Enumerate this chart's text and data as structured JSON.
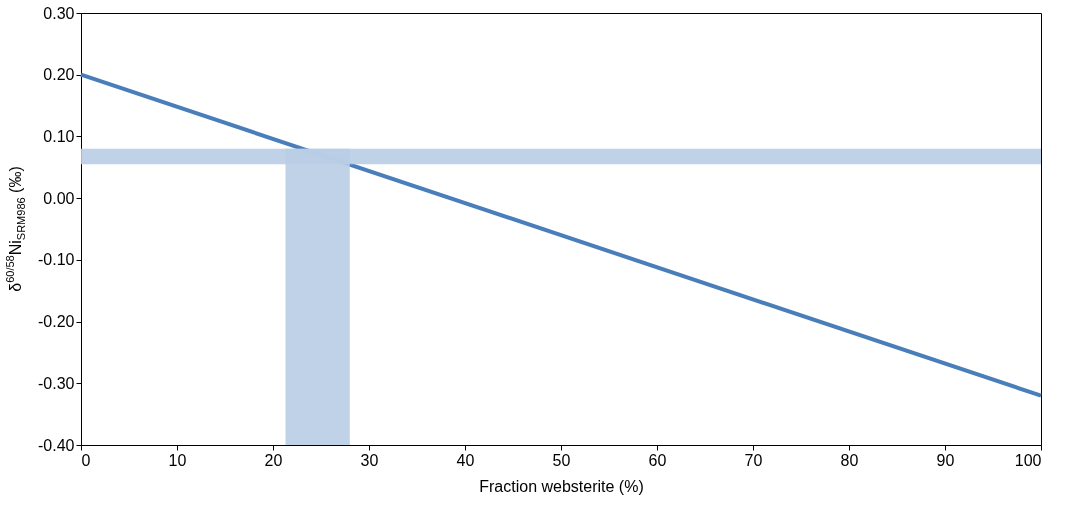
{
  "chart_data": {
    "type": "line",
    "xlabel": "Fraction websterite (%)",
    "ylabel": "δ$^{60/58}$Ni$_{SRM986}$ (‰)",
    "x": [
      0,
      100
    ],
    "series": [
      {
        "color": "#4a7ebb",
        "values": [
          0.2,
          -0.32
        ]
      }
    ],
    "xlim": [
      0,
      100
    ],
    "xticks": [
      0,
      10,
      20,
      30,
      40,
      50,
      60,
      70,
      80,
      90,
      100
    ],
    "ylim": [
      -0.4,
      0.3
    ],
    "yticks": [
      {
        "value": -0.4,
        "label": "-0.40"
      },
      {
        "value": -0.3,
        "label": "-0.30"
      },
      {
        "value": -0.2,
        "label": "-0.20"
      },
      {
        "value": -0.1,
        "label": "-0.10"
      },
      {
        "value": 0,
        "label": "0.00"
      },
      {
        "value": 0.1,
        "label": "0.10"
      },
      {
        "value": 0.2,
        "label": "0.20"
      },
      {
        "value": 0.3,
        "label": "0.30"
      }
    ],
    "bands": [
      {
        "axis": "y",
        "from": 0.055,
        "to": 0.08,
        "color": "#b9cde5"
      },
      {
        "axis": "x",
        "from": 21.3,
        "to": 28,
        "color": "#b9cde5"
      }
    ],
    "grid": false,
    "marker": "none",
    "line_style": "solid"
  }
}
